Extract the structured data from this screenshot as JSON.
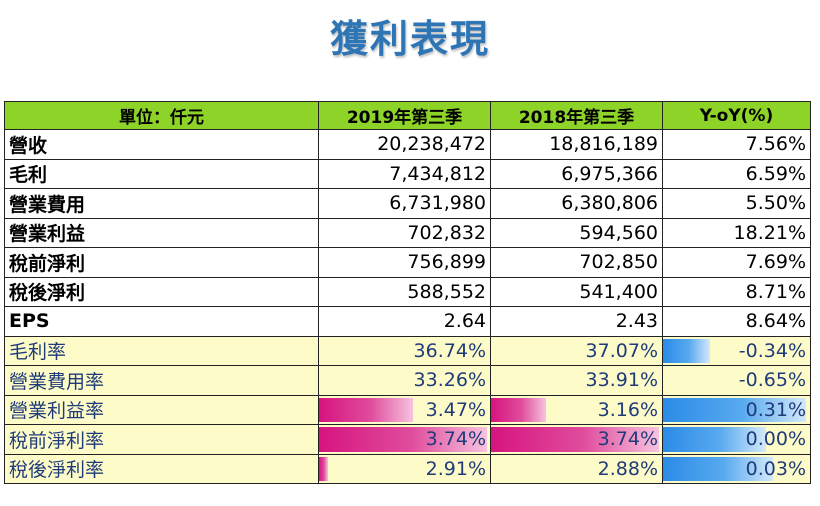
{
  "title": "獲利表現",
  "header": {
    "label": "單位：仟元",
    "col_2019": "2019年第三季",
    "col_2018": "2018年第三季",
    "col_yoy": "Y-oY(%)"
  },
  "rows": [
    {
      "label": "營收",
      "v2019": "20,238,472",
      "v2018": "18,816,189",
      "yoy": "7.56%"
    },
    {
      "label": "毛利",
      "v2019": "7,434,812",
      "v2018": "6,975,366",
      "yoy": "6.59%"
    },
    {
      "label": "營業費用",
      "v2019": "6,731,980",
      "v2018": "6,380,806",
      "yoy": "5.50%"
    },
    {
      "label": "營業利益",
      "v2019": "702,832",
      "v2018": "594,560",
      "yoy": "18.21%"
    },
    {
      "label": "稅前淨利",
      "v2019": "756,899",
      "v2018": "702,850",
      "yoy": "7.69%"
    },
    {
      "label": "稅後淨利",
      "v2019": "588,552",
      "v2018": "541,400",
      "yoy": "8.71%"
    },
    {
      "label": "EPS",
      "v2019": "2.64",
      "v2018": "2.43",
      "yoy": "8.64%"
    }
  ],
  "ratio_rows": [
    {
      "label": "毛利率",
      "v2019": "36.74%",
      "v2018": "37.07%",
      "yoy": "-0.34%",
      "bar2019": 0,
      "bar2018": 0,
      "baryoy": 0.32
    },
    {
      "label": "營業費用率",
      "v2019": "33.26%",
      "v2018": "33.91%",
      "yoy": "-0.65%",
      "bar2019": 0,
      "bar2018": 0,
      "baryoy": 0
    },
    {
      "label": "營業利益率",
      "v2019": "3.47%",
      "v2018": "3.16%",
      "yoy": "0.31%",
      "bar2019": 0.55,
      "bar2018": 0.32,
      "baryoy": 0.97
    },
    {
      "label": "稅前淨利率",
      "v2019": "3.74%",
      "v2018": "3.74%",
      "yoy": "0.00%",
      "bar2019": 0.98,
      "bar2018": 0.98,
      "baryoy": 0.7
    },
    {
      "label": "稅後淨利率",
      "v2019": "2.91%",
      "v2018": "2.88%",
      "yoy": "0.03%",
      "bar2019": 0.05,
      "bar2018": 0,
      "baryoy": 0.75
    }
  ],
  "colors": {
    "header_bg": "#8ed428",
    "ratio_bg": "#fdfbc8",
    "title_color": "#2e75b6",
    "pink_bar": "#d6147f",
    "blue_bar": "#2b8be6"
  }
}
